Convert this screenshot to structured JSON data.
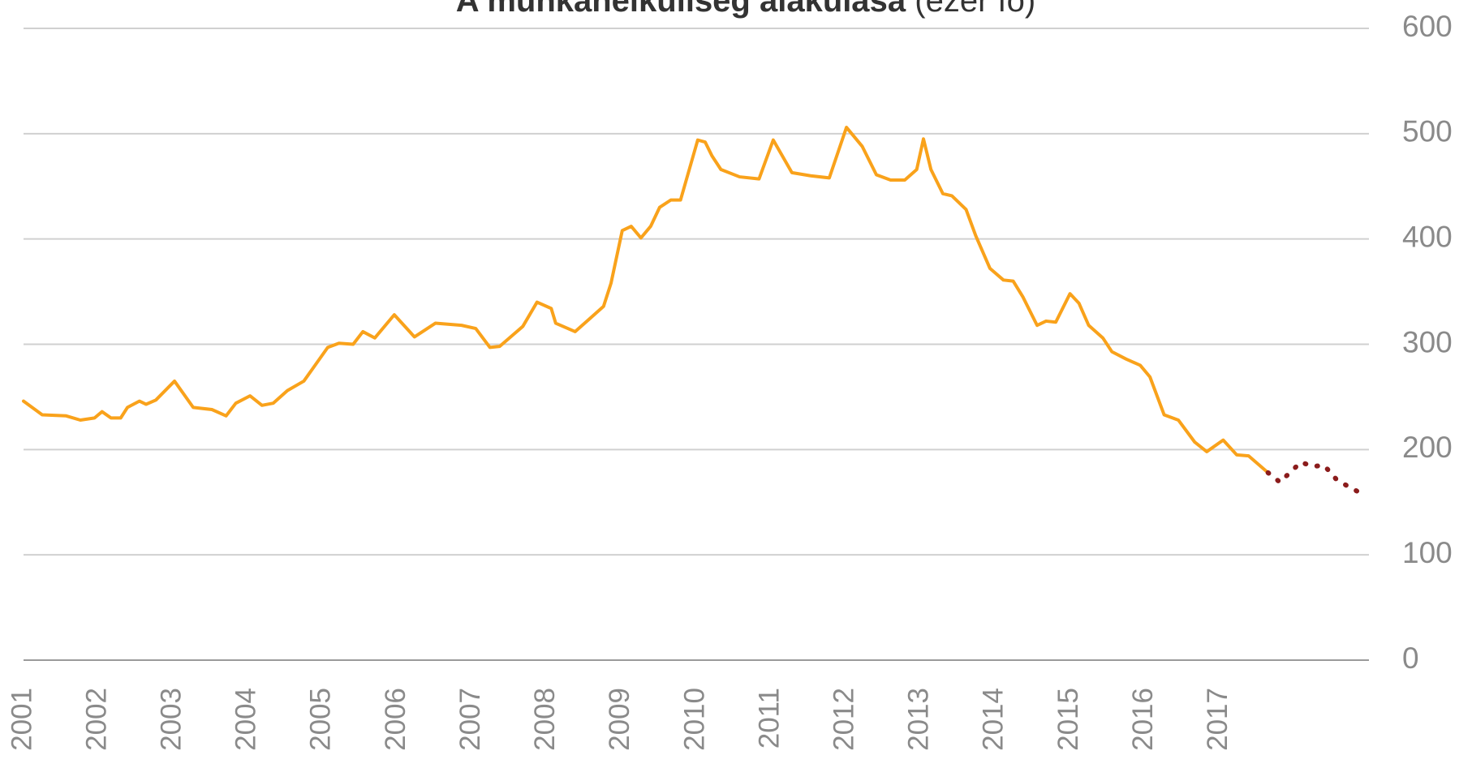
{
  "chart_data": {
    "type": "line",
    "title": "A munkanélküliség alakulása",
    "subtitle": "(ezer fő)",
    "xlim": [
      2001,
      2019
    ],
    "xticks": [
      2001,
      2002,
      2003,
      2004,
      2005,
      2006,
      2007,
      2008,
      2009,
      2010,
      2011,
      2012,
      2013,
      2014,
      2015,
      2016,
      2017
    ],
    "ylim": [
      0,
      600
    ],
    "yticks": [
      0,
      100,
      200,
      300,
      400,
      500,
      600
    ],
    "grid": true,
    "series": [
      {
        "color": "#f9a21b",
        "style": "solid",
        "x": [
          2001.0,
          2001.25,
          2001.57,
          2001.76,
          2001.95,
          2002.05,
          2002.17,
          2002.3,
          2002.39,
          2002.55,
          2002.64,
          2002.77,
          2003.02,
          2003.27,
          2003.52,
          2003.71,
          2003.84,
          2004.03,
          2004.19,
          2004.34,
          2004.53,
          2004.75,
          2004.97,
          2005.07,
          2005.22,
          2005.41,
          2005.54,
          2005.7,
          2005.96,
          2006.23,
          2006.51,
          2006.86,
          2007.05,
          2007.24,
          2007.37,
          2007.68,
          2007.87,
          2008.06,
          2008.12,
          2008.38,
          2008.57,
          2008.76,
          2008.86,
          2009.01,
          2009.13,
          2009.26,
          2009.39,
          2009.51,
          2009.66,
          2009.79,
          2010.02,
          2010.12,
          2010.21,
          2010.33,
          2010.58,
          2010.84,
          2011.03,
          2011.28,
          2011.53,
          2011.78,
          2012.01,
          2012.22,
          2012.41,
          2012.6,
          2012.79,
          2012.95,
          2013.04,
          2013.14,
          2013.3,
          2013.42,
          2013.61,
          2013.74,
          2013.93,
          2014.11,
          2014.24,
          2014.37,
          2014.56,
          2014.68,
          2014.81,
          2015.0,
          2015.12,
          2015.25,
          2015.44,
          2015.56,
          2015.75,
          2015.94,
          2016.07,
          2016.26,
          2016.45,
          2016.67,
          2016.83,
          2017.05,
          2017.23,
          2017.39,
          2017.65
        ],
        "values": [
          246,
          233,
          232,
          228,
          230,
          236,
          230,
          230,
          240,
          246,
          243,
          247,
          265,
          240,
          238,
          232,
          244,
          251,
          242,
          244,
          256,
          265,
          287,
          297,
          301,
          300,
          312,
          306,
          328,
          307,
          320,
          318,
          315,
          297,
          298,
          317,
          340,
          334,
          320,
          312,
          324,
          336,
          358,
          408,
          412,
          401,
          412,
          430,
          437,
          437,
          494,
          492,
          479,
          466,
          459,
          457,
          494,
          463,
          460,
          458,
          506,
          488,
          461,
          456,
          456,
          466,
          495,
          466,
          443,
          441,
          428,
          403,
          372,
          361,
          360,
          345,
          318,
          322,
          321,
          348,
          339,
          318,
          306,
          293,
          286,
          280,
          269,
          233,
          228,
          207,
          198,
          209,
          195,
          194,
          178
        ]
      },
      {
        "color": "#8b1c1c",
        "style": "dotted",
        "x": [
          2017.65,
          2017.81,
          2017.94,
          2018.09,
          2018.25,
          2018.4,
          2018.56,
          2018.72,
          2018.88
        ],
        "values": [
          178,
          169,
          178,
          188,
          184,
          185,
          172,
          165,
          159
        ]
      }
    ]
  }
}
